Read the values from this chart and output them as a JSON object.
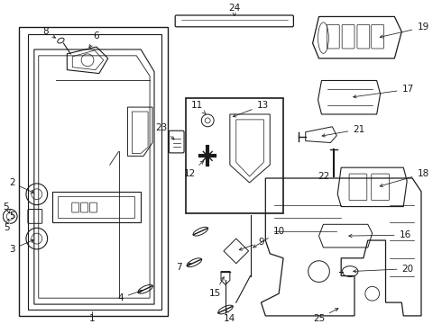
{
  "bg_color": "#ffffff",
  "line_color": "#1a1a1a",
  "label_color": "#111111",
  "font_size": 7.5,
  "figsize": [
    4.9,
    3.6
  ],
  "dpi": 100
}
